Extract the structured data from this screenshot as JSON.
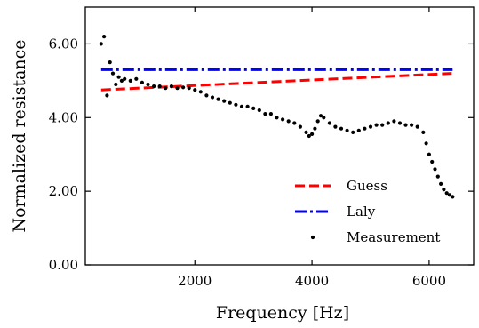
{
  "chart_data": {
    "type": "line",
    "xlabel": "Frequency [Hz]",
    "ylabel": "Normalized resistance",
    "xlim": [
      130,
      6760
    ],
    "ylim": [
      0.0,
      7.0
    ],
    "x_ticks": [
      2000,
      4000,
      6000
    ],
    "x_tick_labels": [
      "2000",
      "4000",
      "6000"
    ],
    "y_ticks": [
      0,
      2,
      4,
      6
    ],
    "y_tick_labels": [
      "0.00",
      "2.00",
      "4.00",
      "6.00"
    ],
    "grid": false,
    "legend_position": "lower-right",
    "series": [
      {
        "name": "Guess",
        "style": "dashed",
        "color": "#ff0000",
        "x": [
          400,
          6400
        ],
        "y": [
          4.75,
          5.2
        ]
      },
      {
        "name": "Laly",
        "style": "dashdot",
        "color": "#0000ff",
        "x": [
          400,
          6400
        ],
        "y": [
          5.3,
          5.3
        ]
      },
      {
        "name": "Measurement",
        "style": "points",
        "color": "#000000",
        "x": [
          400,
          450,
          500,
          550,
          600,
          650,
          700,
          750,
          800,
          900,
          1000,
          1100,
          1200,
          1300,
          1400,
          1500,
          1600,
          1700,
          1800,
          1900,
          2000,
          2100,
          2200,
          2300,
          2400,
          2500,
          2600,
          2700,
          2800,
          2900,
          3000,
          3100,
          3200,
          3300,
          3400,
          3500,
          3600,
          3700,
          3800,
          3900,
          3950,
          4000,
          4050,
          4100,
          4150,
          4200,
          4300,
          4400,
          4500,
          4600,
          4700,
          4800,
          4900,
          5000,
          5100,
          5200,
          5300,
          5400,
          5500,
          5600,
          5700,
          5800,
          5900,
          5950,
          6000,
          6050,
          6100,
          6150,
          6200,
          6250,
          6300,
          6350,
          6400
        ],
        "y": [
          6.0,
          6.2,
          4.6,
          5.5,
          5.2,
          4.9,
          5.1,
          5.0,
          5.05,
          5.0,
          5.05,
          4.95,
          4.9,
          4.85,
          4.85,
          4.8,
          4.85,
          4.8,
          4.82,
          4.8,
          4.75,
          4.7,
          4.6,
          4.55,
          4.5,
          4.45,
          4.4,
          4.35,
          4.3,
          4.3,
          4.25,
          4.2,
          4.1,
          4.1,
          4.0,
          3.95,
          3.9,
          3.85,
          3.75,
          3.6,
          3.5,
          3.55,
          3.7,
          3.9,
          4.05,
          4.0,
          3.85,
          3.75,
          3.7,
          3.65,
          3.6,
          3.65,
          3.7,
          3.75,
          3.8,
          3.8,
          3.85,
          3.9,
          3.85,
          3.8,
          3.8,
          3.75,
          3.6,
          3.3,
          3.0,
          2.8,
          2.6,
          2.4,
          2.2,
          2.05,
          1.95,
          1.9,
          1.85
        ]
      }
    ]
  }
}
